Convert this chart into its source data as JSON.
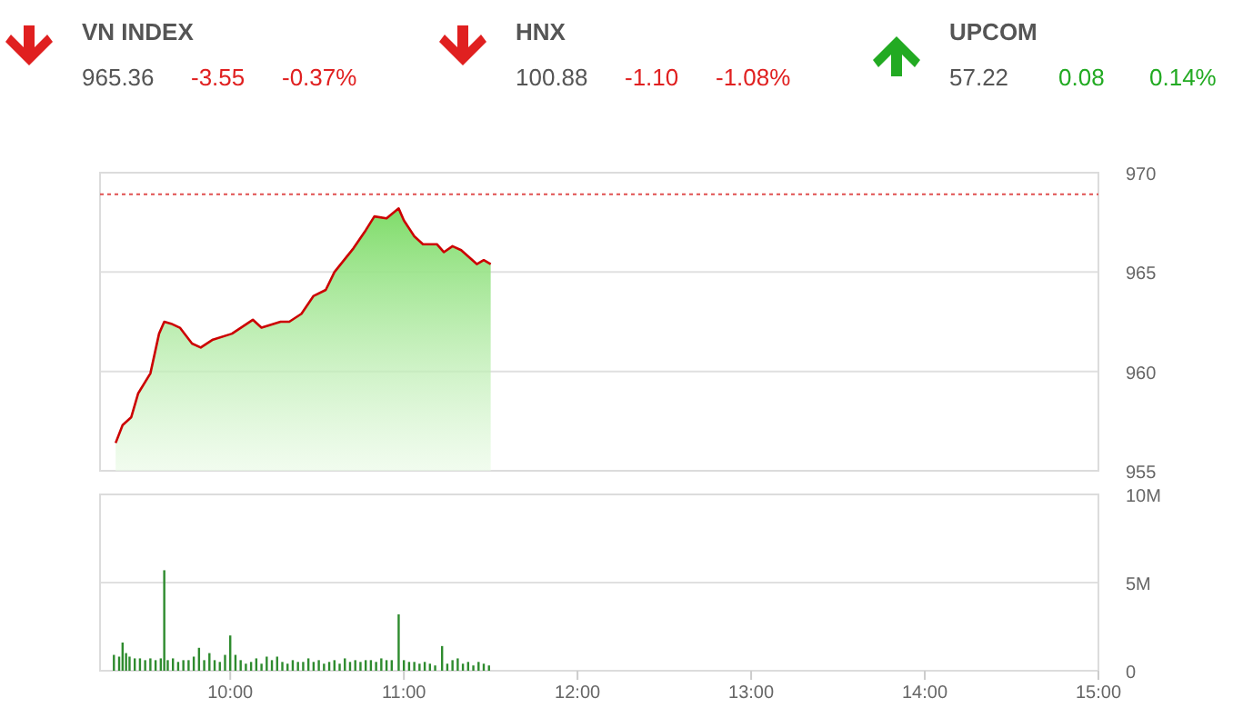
{
  "chart_data": [
    {
      "type": "other",
      "data_labels": true,
      "categories": [
        "VN INDEX",
        "HNX",
        "UPCOM"
      ],
      "series": [
        {
          "values": [
            965.36,
            100.88,
            57.22
          ],
          "color": "#555555"
        },
        {
          "values": [
            -3.55,
            -1.1,
            0.08
          ],
          "colors": [
            "#e02020",
            "#e02020",
            "#22aa22"
          ],
          "value_labels": [
            "-3.55",
            "-1.10",
            "0.08"
          ]
        },
        {
          "values": [
            -0.37,
            -1.08,
            0.14
          ],
          "colors": [
            "#e02020",
            "#e02020",
            "#22aa22"
          ],
          "value_labels": [
            "-0.37%",
            "-1.08%",
            "0.14%"
          ]
        }
      ]
    },
    {
      "type": "area",
      "color": "#cc0000",
      "x": [
        9.34,
        9.38,
        9.43,
        9.47,
        9.54,
        9.59,
        9.62,
        9.66,
        9.71,
        9.78,
        9.83,
        9.9,
        10.01,
        10.13,
        10.18,
        10.29,
        10.34,
        10.41,
        10.48,
        10.55,
        10.6,
        10.71,
        10.78,
        10.83,
        10.9,
        10.97,
        11.0,
        11.06,
        11.11,
        11.19,
        11.23,
        11.28,
        11.33,
        11.42,
        11.46,
        11.5
      ],
      "values": [
        956.4,
        957.3,
        957.7,
        958.9,
        959.9,
        961.9,
        962.5,
        962.4,
        962.2,
        961.4,
        961.2,
        961.6,
        961.9,
        962.6,
        962.2,
        962.5,
        962.5,
        962.9,
        963.8,
        964.1,
        965.0,
        966.2,
        967.1,
        967.8,
        967.7,
        968.2,
        967.6,
        966.8,
        966.4,
        966.4,
        966.0,
        966.3,
        966.1,
        965.4,
        965.6,
        965.4
      ],
      "xlim": [
        9.25,
        15
      ],
      "ylim": [
        955,
        970
      ],
      "yticks": [
        955,
        960,
        965,
        970
      ],
      "grid": "y",
      "tick_labels": "y",
      "ref_lines": [
        {
          "axis": "y",
          "value": 968.91,
          "color": "#e05050",
          "line_style": "dotted"
        }
      ]
    },
    {
      "type": "bar",
      "color": "#2e8b2e",
      "x": [
        9.33,
        9.36,
        9.38,
        9.4,
        9.42,
        9.45,
        9.48,
        9.51,
        9.54,
        9.57,
        9.6,
        9.62,
        9.64,
        9.67,
        9.7,
        9.73,
        9.76,
        9.79,
        9.82,
        9.85,
        9.88,
        9.91,
        9.94,
        9.97,
        10.0,
        10.03,
        10.06,
        10.09,
        10.12,
        10.15,
        10.18,
        10.21,
        10.24,
        10.27,
        10.3,
        10.33,
        10.36,
        10.39,
        10.42,
        10.45,
        10.48,
        10.51,
        10.54,
        10.57,
        10.6,
        10.63,
        10.66,
        10.69,
        10.72,
        10.75,
        10.78,
        10.81,
        10.84,
        10.87,
        10.9,
        10.93,
        10.97,
        11.0,
        11.03,
        11.06,
        11.09,
        11.12,
        11.15,
        11.18,
        11.22,
        11.25,
        11.28,
        11.31,
        11.34,
        11.37,
        11.4,
        11.43,
        11.46,
        11.49
      ],
      "values": [
        0.9,
        0.8,
        1.6,
        1.0,
        0.8,
        0.7,
        0.7,
        0.6,
        0.7,
        0.6,
        0.7,
        5.7,
        0.6,
        0.7,
        0.5,
        0.6,
        0.6,
        0.8,
        1.3,
        0.6,
        1.0,
        0.6,
        0.5,
        0.9,
        2.0,
        0.9,
        0.6,
        0.4,
        0.5,
        0.7,
        0.4,
        0.8,
        0.6,
        0.8,
        0.5,
        0.4,
        0.6,
        0.5,
        0.5,
        0.7,
        0.5,
        0.6,
        0.4,
        0.5,
        0.6,
        0.4,
        0.7,
        0.5,
        0.6,
        0.5,
        0.6,
        0.6,
        0.5,
        0.7,
        0.6,
        0.6,
        3.2,
        0.6,
        0.5,
        0.5,
        0.4,
        0.5,
        0.4,
        0.3,
        1.4,
        0.4,
        0.6,
        0.7,
        0.4,
        0.5,
        0.3,
        0.5,
        0.4,
        0.3
      ],
      "xlim": [
        9.25,
        15
      ],
      "xticks": [
        {
          "value": 10,
          "label": "10:00"
        },
        {
          "value": 11,
          "label": "11:00"
        },
        {
          "value": 12,
          "label": "12:00"
        },
        {
          "value": 13,
          "label": "13:00"
        },
        {
          "value": 14,
          "label": "14:00"
        },
        {
          "value": 15,
          "label": "15:00"
        }
      ],
      "ylim": [
        0,
        10
      ],
      "yticks": [
        0,
        {
          "value": 5,
          "label": "5M"
        },
        {
          "value": 10,
          "label": "10M"
        }
      ],
      "grid": "y"
    }
  ]
}
